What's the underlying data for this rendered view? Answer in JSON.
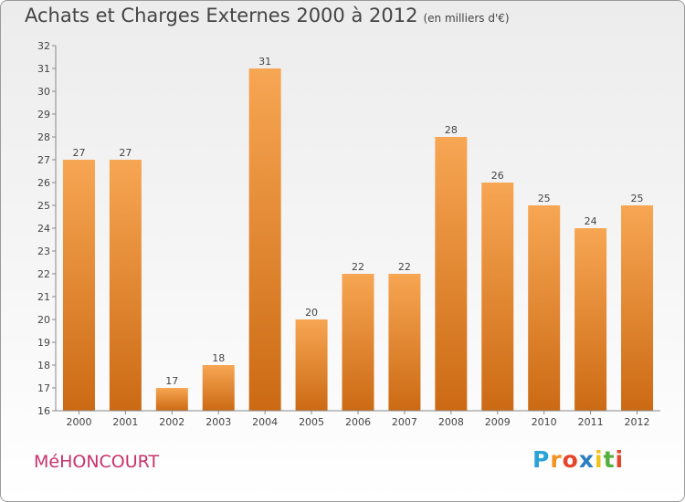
{
  "header": {
    "title": "Achats et Charges Externes 2000 à 2012",
    "subtitle": "(en milliers d'€)"
  },
  "footer": {
    "commune": "MéHONCOURT",
    "brand": {
      "letters": [
        "P",
        "r",
        "o",
        "x",
        "i",
        "t",
        "i"
      ],
      "colors": [
        "#29a3d6",
        "#f39221",
        "#e5452b",
        "#2b7fc1",
        "#f3c11b",
        "#55b03d",
        "#e5452b"
      ]
    }
  },
  "colors": {
    "bar_top": "#f7a653",
    "bar_bottom": "#cc6a14",
    "axis": "#888888",
    "grid": "#dddddd"
  },
  "chart_data": {
    "type": "bar",
    "title": "Achats et Charges Externes 2000 à 2012",
    "subtitle": "(en milliers d'€)",
    "categories": [
      "2000",
      "2001",
      "2002",
      "2003",
      "2004",
      "2005",
      "2006",
      "2007",
      "2008",
      "2009",
      "2010",
      "2011",
      "2012"
    ],
    "values": [
      27,
      27,
      17,
      18,
      31,
      20,
      22,
      22,
      28,
      26,
      25,
      24,
      25
    ],
    "ylim": [
      16,
      32
    ],
    "yticks": [
      16,
      17,
      18,
      19,
      20,
      21,
      22,
      23,
      24,
      25,
      26,
      27,
      28,
      29,
      30,
      31,
      32
    ],
    "xlabel": "",
    "ylabel": "",
    "grid": false,
    "legend": "none"
  }
}
